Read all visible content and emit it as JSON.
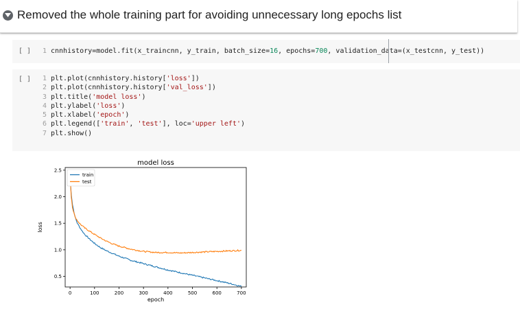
{
  "markdown_cell": {
    "heading": "Removed the whole training part for avoiding unnecessary long epochs list"
  },
  "code_cell_1": {
    "run_label": "[ ]",
    "lines": [
      {
        "n": "1",
        "parts": [
          [
            "t",
            "cnnhistory=model.fit(x_traincnn, y_train, batch_size="
          ],
          [
            "n",
            "16"
          ],
          [
            "t",
            ", epochs="
          ],
          [
            "n",
            "700"
          ],
          [
            "t",
            ", validation_data=(x_testcnn, y_test))"
          ]
        ]
      }
    ]
  },
  "code_cell_2": {
    "run_label": "[ ]",
    "lines": [
      {
        "n": "1",
        "parts": [
          [
            "t",
            "plt.plot(cnnhistory.history["
          ],
          [
            "s",
            "'loss'"
          ],
          [
            "t",
            "])"
          ]
        ]
      },
      {
        "n": "2",
        "parts": [
          [
            "t",
            "plt.plot(cnnhistory.history["
          ],
          [
            "s",
            "'val_loss'"
          ],
          [
            "t",
            "])"
          ]
        ]
      },
      {
        "n": "3",
        "parts": [
          [
            "t",
            "plt.title("
          ],
          [
            "s",
            "'model loss'"
          ],
          [
            "t",
            ")"
          ]
        ]
      },
      {
        "n": "4",
        "parts": [
          [
            "t",
            "plt.ylabel("
          ],
          [
            "s",
            "'loss'"
          ],
          [
            "t",
            ")"
          ]
        ]
      },
      {
        "n": "5",
        "parts": [
          [
            "t",
            "plt.xlabel("
          ],
          [
            "s",
            "'epoch'"
          ],
          [
            "t",
            ")"
          ]
        ]
      },
      {
        "n": "6",
        "parts": [
          [
            "t",
            "plt.legend(["
          ],
          [
            "s",
            "'train'"
          ],
          [
            "t",
            ", "
          ],
          [
            "s",
            "'test'"
          ],
          [
            "t",
            "], loc="
          ],
          [
            "s",
            "'upper left'"
          ],
          [
            "t",
            ")"
          ]
        ]
      },
      {
        "n": "7",
        "parts": [
          [
            "t",
            "plt.show()"
          ]
        ]
      }
    ]
  },
  "chart_data": {
    "type": "line",
    "title": "model loss",
    "xlabel": "epoch",
    "ylabel": "loss",
    "xlim": [
      -20,
      720
    ],
    "ylim": [
      0.3,
      2.55
    ],
    "xticks": [
      0,
      100,
      200,
      300,
      400,
      500,
      600,
      700
    ],
    "yticks": [
      0.5,
      1.0,
      1.5,
      2.0,
      2.5
    ],
    "ytick_labels": [
      "0.5",
      "1.0",
      "1.5",
      "2.0",
      "2.5"
    ],
    "legend": "upper left",
    "grid": false,
    "series": [
      {
        "name": "train",
        "color": "#1f77b4",
        "x": [
          0,
          5,
          10,
          20,
          30,
          40,
          50,
          60,
          80,
          100,
          125,
          150,
          175,
          200,
          250,
          300,
          350,
          400,
          450,
          500,
          550,
          600,
          650,
          700
        ],
        "y": [
          2.35,
          2.05,
          1.85,
          1.62,
          1.5,
          1.42,
          1.35,
          1.29,
          1.2,
          1.12,
          1.04,
          0.98,
          0.93,
          0.88,
          0.8,
          0.74,
          0.68,
          0.62,
          0.57,
          0.52,
          0.47,
          0.42,
          0.37,
          0.31
        ]
      },
      {
        "name": "test",
        "color": "#ff7f0e",
        "x": [
          0,
          5,
          10,
          20,
          30,
          40,
          50,
          60,
          80,
          100,
          125,
          150,
          175,
          200,
          250,
          300,
          350,
          400,
          450,
          500,
          550,
          600,
          650,
          700
        ],
        "y": [
          2.4,
          2.0,
          1.8,
          1.62,
          1.55,
          1.49,
          1.45,
          1.41,
          1.35,
          1.29,
          1.22,
          1.16,
          1.11,
          1.07,
          1.01,
          0.97,
          0.95,
          0.95,
          0.94,
          0.95,
          0.96,
          0.97,
          0.98,
          0.99
        ]
      }
    ]
  }
}
